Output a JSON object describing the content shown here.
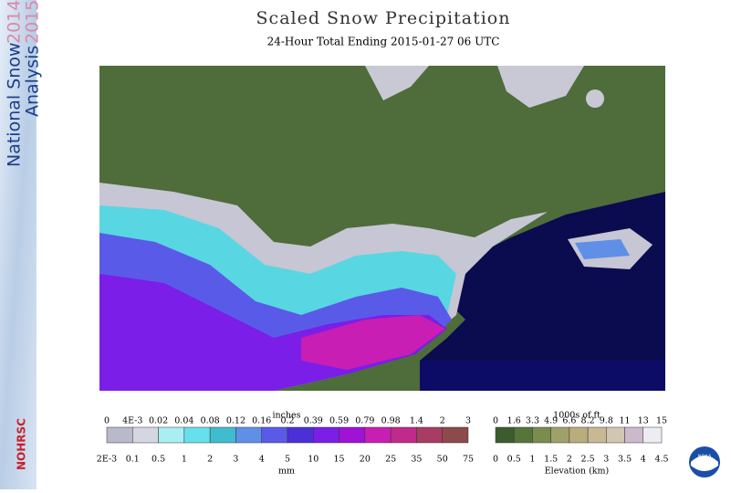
{
  "sidebar": {
    "line1": "National Snow",
    "line2": "Analysis",
    "year1": "2014",
    "year2": "2015",
    "org": "NOHRSC"
  },
  "header": {
    "title": "Scaled Snow Precipitation",
    "subtitle": "24-Hour Total Ending 2015-01-27 06 UTC"
  },
  "precip_legend": {
    "top_unit": "inches",
    "bottom_unit": "mm",
    "inches": [
      "0",
      "4E-3",
      "0.02",
      "0.04",
      "0.08",
      "0.12",
      "0.16",
      "0.2",
      "0.39",
      "0.59",
      "0.79",
      "0.98",
      "1.4",
      "2",
      "3"
    ],
    "mm": [
      "2E-3",
      "0.1",
      "0.5",
      "1",
      "2",
      "3",
      "4",
      "5",
      "10",
      "15",
      "20",
      "25",
      "35",
      "50",
      "75"
    ],
    "colors": [
      "#b9b9cc",
      "#d6d6e0",
      "#a8eef2",
      "#66e0ea",
      "#40bccf",
      "#5f8fe6",
      "#5a5ae8",
      "#4a30d6",
      "#7a1ee8",
      "#a012d6",
      "#c81eb4",
      "#c02a8a",
      "#a83c64",
      "#8c4a4a"
    ]
  },
  "elevation_legend": {
    "top_unit": "1000s of ft",
    "bottom_unit": "Elevation (km)",
    "feet": [
      "0",
      "1.6",
      "3.3",
      "4.9",
      "6.6",
      "8.2",
      "9.8",
      "11",
      "13",
      "15"
    ],
    "km": [
      "0",
      "0.5",
      "1",
      "1.5",
      "2",
      "2.5",
      "3",
      "3.5",
      "4",
      "4.5"
    ],
    "colors": [
      "#3c5c2e",
      "#56753a",
      "#7a8c4e",
      "#9ea268",
      "#b8ad7c",
      "#c9b894",
      "#d0c6b2",
      "#cdb9cd",
      "#ececf2"
    ]
  },
  "logo": "NOAA"
}
